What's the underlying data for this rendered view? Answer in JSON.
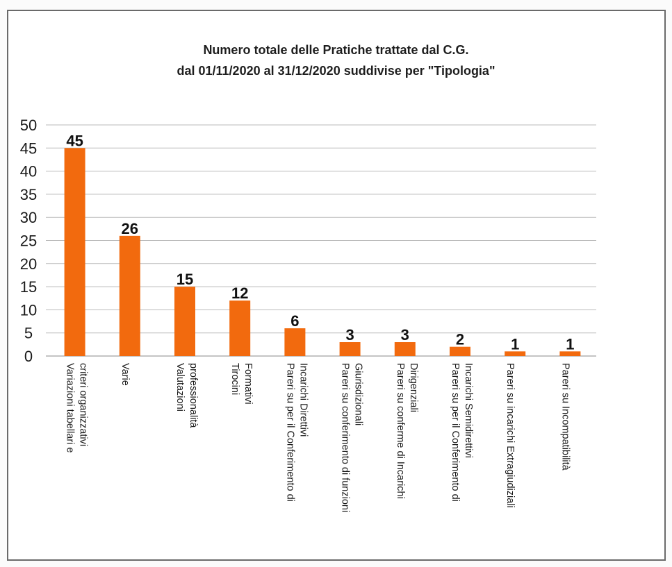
{
  "chart_data": {
    "type": "bar",
    "title": "Numero totale delle Pratiche trattate dal C.G.",
    "subtitle": "dal 01/11/2020 al 31/12/2020 suddivise per \"Tipologia\"",
    "categories": [
      [
        "Variazioni tabellari e",
        "criteri organizzativi"
      ],
      [
        "Varie"
      ],
      [
        "Valutazioni",
        "professionalità"
      ],
      [
        "Tirocini",
        "Formativi"
      ],
      [
        "Pareri su per il Conferimento di",
        "Incarichi Direttivi"
      ],
      [
        "Pareri su conferimento di funzioni",
        "Giurisdizionali"
      ],
      [
        "Pareri su conferme di Incarichi",
        "Dirigenziali"
      ],
      [
        "Pareri su per il Conferimento di",
        "Incarichi Semidirettivi"
      ],
      [
        "Pareri su incarichi Extragiudiziali"
      ],
      [
        "Pareri su Incompatibilità"
      ]
    ],
    "values": [
      45,
      26,
      15,
      12,
      6,
      3,
      3,
      2,
      1,
      1
    ],
    "ylim": [
      0,
      50
    ],
    "yticks": [
      0,
      5,
      10,
      15,
      20,
      25,
      30,
      35,
      40,
      45,
      50
    ],
    "grid": true,
    "bar_color": "#f26a0e"
  }
}
